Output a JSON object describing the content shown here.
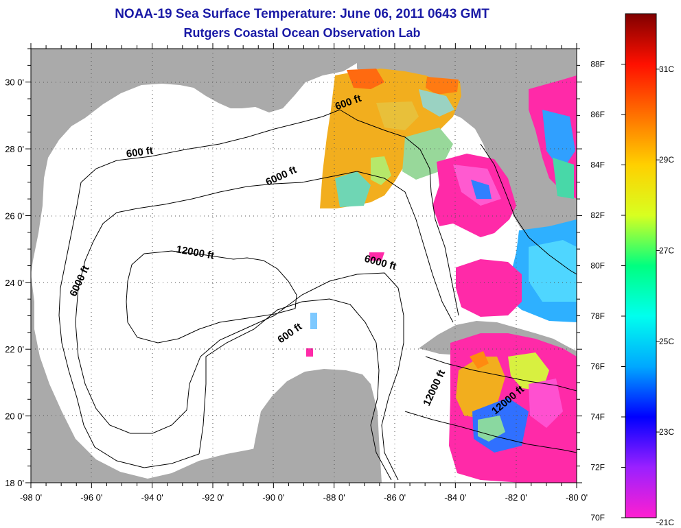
{
  "title": {
    "line1": "NOAA-19 Sea Surface Temperature:  June 06, 2011 0643 GMT",
    "line2": "Rutgers Coastal Ocean Observation Lab"
  },
  "axes": {
    "lon_range": [
      -98,
      -80
    ],
    "lat_range": [
      18,
      31
    ],
    "lon_labels": [
      {
        "lon": -98,
        "text": "-98 0'"
      },
      {
        "lon": -96,
        "text": "-96 0'"
      },
      {
        "lon": -94,
        "text": "-94 0'"
      },
      {
        "lon": -92,
        "text": "-92 0'"
      },
      {
        "lon": -90,
        "text": "-90 0'"
      },
      {
        "lon": -88,
        "text": "-88 0'"
      },
      {
        "lon": -86,
        "text": "-86 0'"
      },
      {
        "lon": -84,
        "text": "-84 0'"
      },
      {
        "lon": -82,
        "text": "-82 0'"
      },
      {
        "lon": -80,
        "text": "-80 0'"
      }
    ],
    "lat_labels": [
      {
        "lat": 18,
        "text": "18 0'"
      },
      {
        "lat": 20,
        "text": "20 0'"
      },
      {
        "lat": 22,
        "text": "22 0'"
      },
      {
        "lat": 24,
        "text": "24 0'"
      },
      {
        "lat": 26,
        "text": "26 0'"
      },
      {
        "lat": 28,
        "text": "28 0'"
      },
      {
        "lat": 30,
        "text": "30 0'"
      }
    ]
  },
  "contour_labels": [
    {
      "text": "600 ft",
      "lon": -87.5,
      "lat": 29.3,
      "rot": -20
    },
    {
      "text": "600 ft",
      "lon": -94.4,
      "lat": 27.8,
      "rot": -8
    },
    {
      "text": "6000 ft",
      "lon": -89.7,
      "lat": 27.1,
      "rot": -25
    },
    {
      "text": "12000 ft",
      "lon": -92.6,
      "lat": 24.8,
      "rot": 10
    },
    {
      "text": "6000 ft",
      "lon": -96.3,
      "lat": 24.0,
      "rot": -65
    },
    {
      "text": "6000 ft",
      "lon": -86.5,
      "lat": 24.5,
      "rot": 15
    },
    {
      "text": "600 ft",
      "lon": -89.4,
      "lat": 22.4,
      "rot": -35
    },
    {
      "text": "12000 ft",
      "lon": -84.6,
      "lat": 20.8,
      "rot": -65
    },
    {
      "text": "12000 ft",
      "lon": -82.2,
      "lat": 20.4,
      "rot": -40
    }
  ],
  "colorbar": {
    "temp_min_f": 70,
    "temp_max_f": 90,
    "colors": [
      "#ff1fd0",
      "#9a20ff",
      "#0000ff",
      "#00a8ff",
      "#00ffee",
      "#00ff80",
      "#d8ff20",
      "#ffd000",
      "#ff7000",
      "#ff1000",
      "#800000"
    ],
    "fahrenheit_labels": [
      "88F",
      "86F",
      "84F",
      "82F",
      "80F",
      "78F",
      "76F",
      "74F",
      "72F",
      "70F"
    ],
    "celsius_labels": [
      "31C",
      "29C",
      "27C",
      "25C",
      "23C",
      "21C"
    ]
  },
  "colors": {
    "land": "#aaaaaa",
    "title": "#1a1aa6"
  }
}
